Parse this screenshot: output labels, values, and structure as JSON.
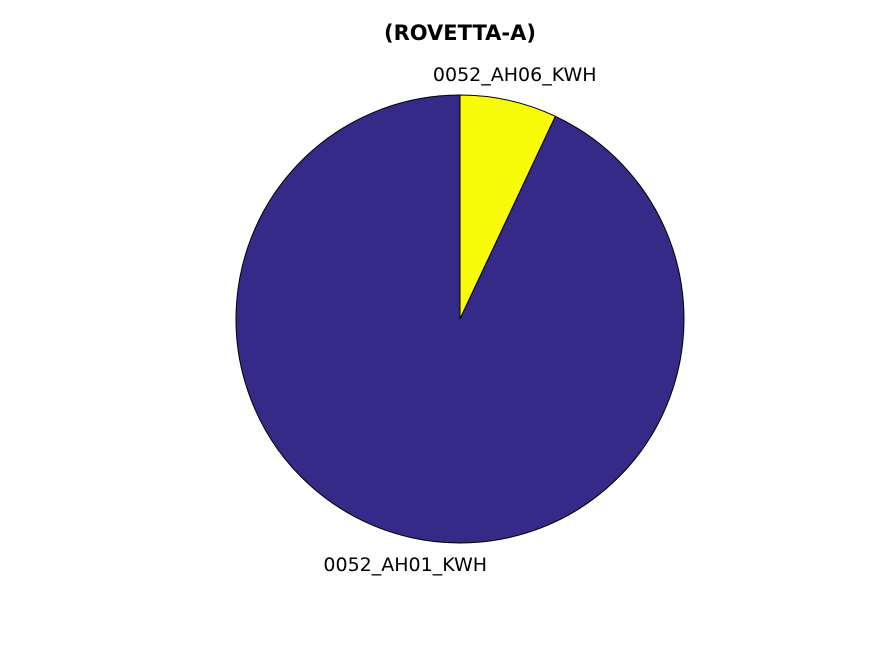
{
  "chart_data": {
    "type": "pie",
    "title": "(ROVETTA-A)",
    "slices": [
      {
        "label": "0052_AH06_KWH",
        "value": 7,
        "color": "#f8fc0a"
      },
      {
        "label": "0052_AH01_KWH",
        "value": 93,
        "color": "#352a87"
      }
    ],
    "start": "top",
    "direction": "clockwise",
    "legend": "none"
  }
}
